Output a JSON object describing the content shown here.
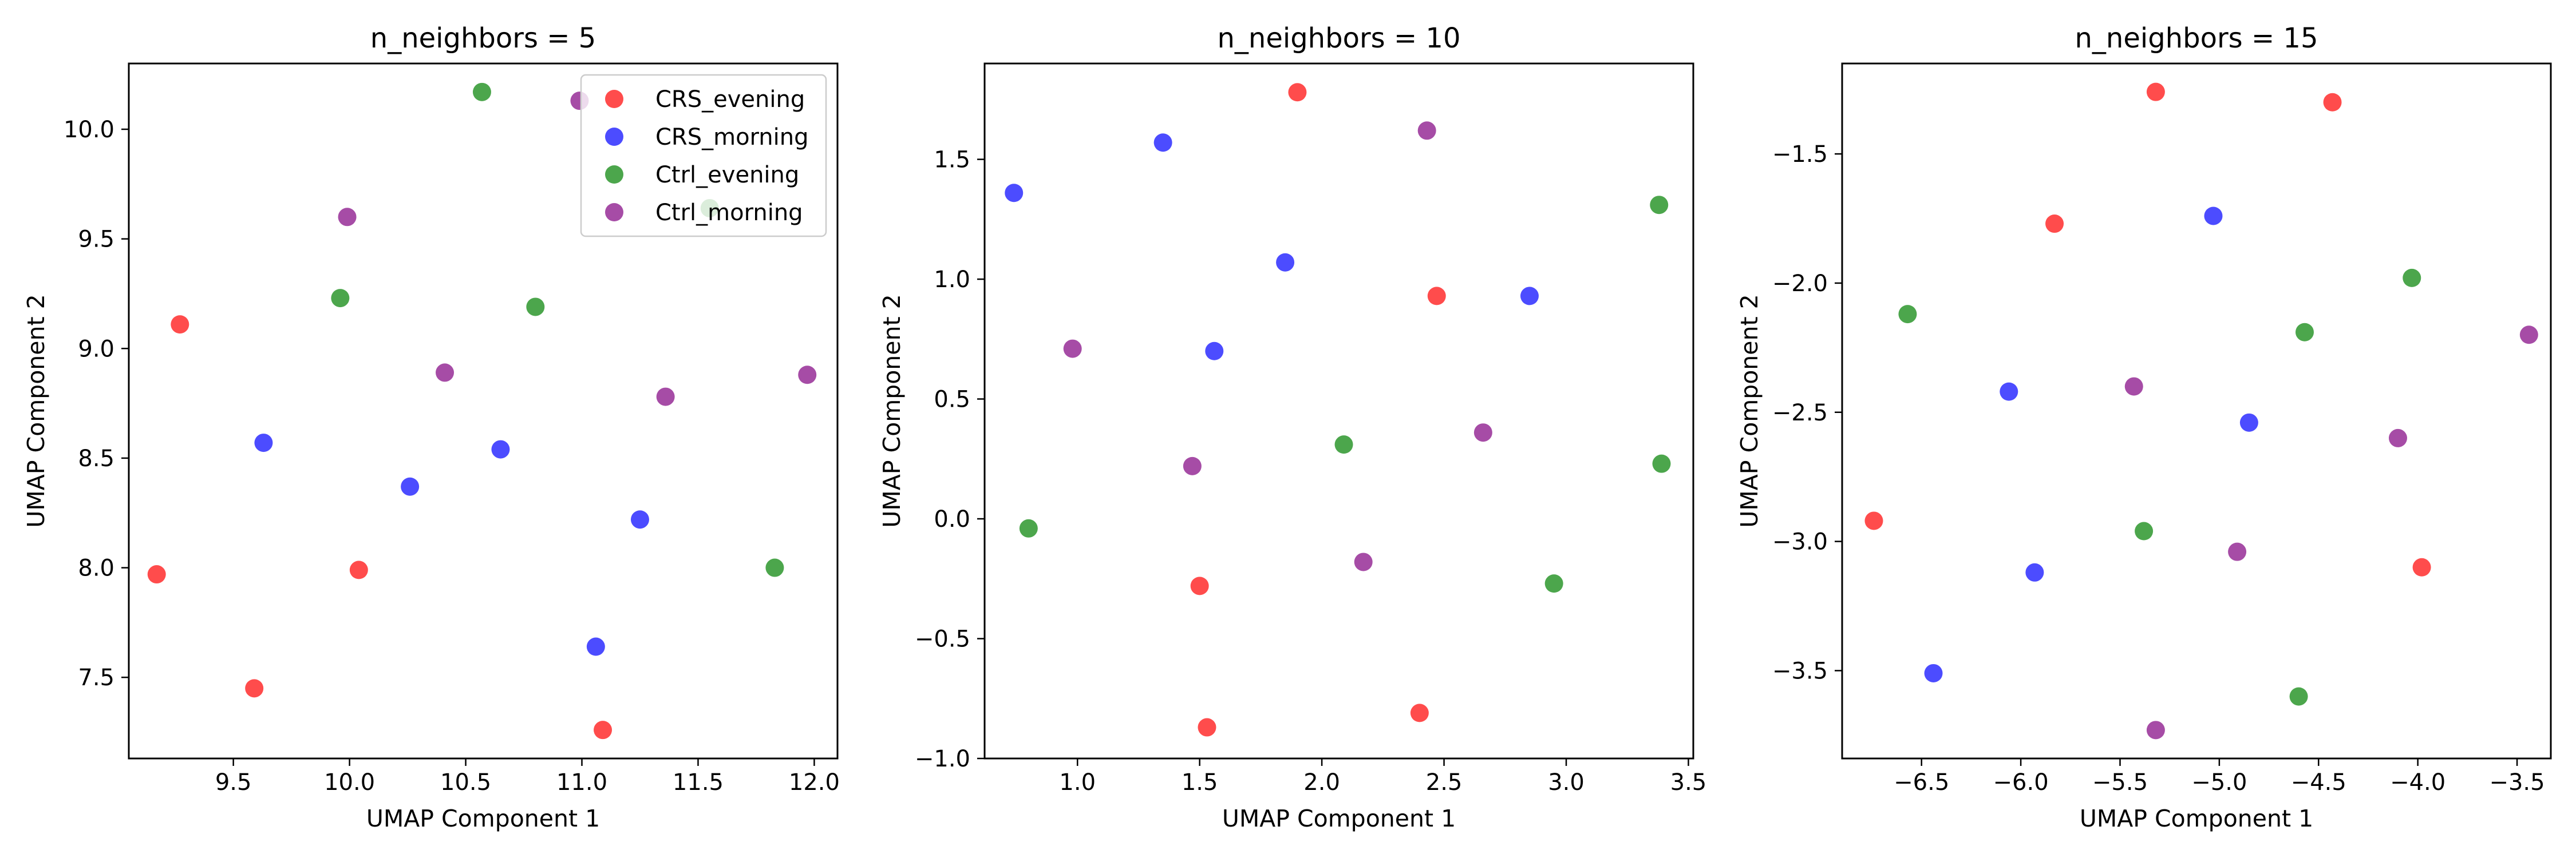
{
  "figure": {
    "background": "#ffffff"
  },
  "chart_data": [
    {
      "type": "scatter",
      "title": "n_neighbors = 5",
      "xlabel": "UMAP Component 1",
      "ylabel": "UMAP Component 2",
      "xlim": [
        9.05,
        12.1
      ],
      "ylim": [
        7.13,
        10.3
      ],
      "xticks": [
        9.5,
        10.0,
        10.5,
        11.0,
        11.5,
        12.0
      ],
      "xtick_labels": [
        "9.5",
        "10.0",
        "10.5",
        "11.0",
        "11.5",
        "12.0"
      ],
      "yticks": [
        7.5,
        8.0,
        8.5,
        9.0,
        9.5,
        10.0
      ],
      "ytick_labels": [
        "7.5",
        "8.0",
        "8.5",
        "9.0",
        "9.5",
        "10.0"
      ],
      "grid": false,
      "legend": "upper right",
      "series": [
        {
          "name": "CRS_evening",
          "color": "#ff0000",
          "points": [
            [
              9.27,
              9.11
            ],
            [
              9.17,
              7.97
            ],
            [
              9.59,
              7.45
            ],
            [
              10.04,
              7.99
            ],
            [
              11.09,
              7.26
            ]
          ]
        },
        {
          "name": "CRS_morning",
          "color": "#0000ff",
          "points": [
            [
              9.63,
              8.57
            ],
            [
              10.26,
              8.37
            ],
            [
              10.65,
              8.54
            ],
            [
              11.25,
              8.22
            ],
            [
              11.06,
              7.64
            ]
          ]
        },
        {
          "name": "Ctrl_evening",
          "color": "#008000",
          "points": [
            [
              10.57,
              10.17
            ],
            [
              9.96,
              9.23
            ],
            [
              10.8,
              9.19
            ],
            [
              11.55,
              9.64
            ],
            [
              11.83,
              8.0
            ]
          ]
        },
        {
          "name": "Ctrl_morning",
          "color": "#800080",
          "points": [
            [
              10.99,
              10.13
            ],
            [
              9.99,
              9.6
            ],
            [
              10.41,
              8.89
            ],
            [
              11.36,
              8.78
            ],
            [
              11.97,
              8.88
            ]
          ]
        }
      ]
    },
    {
      "type": "scatter",
      "title": "n_neighbors = 10",
      "xlabel": "UMAP Component 1",
      "ylabel": "UMAP Component 2",
      "xlim": [
        0.62,
        3.52
      ],
      "ylim": [
        -1.0,
        1.9
      ],
      "xticks": [
        1.0,
        1.5,
        2.0,
        2.5,
        3.0,
        3.5
      ],
      "xtick_labels": [
        "1.0",
        "1.5",
        "2.0",
        "2.5",
        "3.0",
        "3.5"
      ],
      "yticks": [
        -1.0,
        -0.5,
        0.0,
        0.5,
        1.0,
        1.5
      ],
      "ytick_labels": [
        "−1.0",
        "−0.5",
        "0.0",
        "0.5",
        "1.0",
        "1.5"
      ],
      "grid": false,
      "legend": "none",
      "series": [
        {
          "name": "CRS_evening",
          "color": "#ff0000",
          "points": [
            [
              1.9,
              1.78
            ],
            [
              2.47,
              0.93
            ],
            [
              1.5,
              -0.28
            ],
            [
              1.53,
              -0.87
            ],
            [
              2.4,
              -0.81
            ]
          ]
        },
        {
          "name": "CRS_morning",
          "color": "#0000ff",
          "points": [
            [
              0.74,
              1.36
            ],
            [
              1.35,
              1.57
            ],
            [
              1.85,
              1.07
            ],
            [
              1.56,
              0.7
            ],
            [
              2.85,
              0.93
            ]
          ]
        },
        {
          "name": "Ctrl_evening",
          "color": "#008000",
          "points": [
            [
              3.38,
              1.31
            ],
            [
              0.8,
              -0.04
            ],
            [
              2.09,
              0.31
            ],
            [
              3.39,
              0.23
            ],
            [
              2.95,
              -0.27
            ]
          ]
        },
        {
          "name": "Ctrl_morning",
          "color": "#800080",
          "points": [
            [
              2.43,
              1.62
            ],
            [
              0.98,
              0.71
            ],
            [
              1.47,
              0.22
            ],
            [
              2.66,
              0.36
            ],
            [
              2.17,
              -0.18
            ]
          ]
        }
      ]
    },
    {
      "type": "scatter",
      "title": "n_neighbors = 15",
      "xlabel": "UMAP Component 1",
      "ylabel": "UMAP Component 2",
      "xlim": [
        -6.9,
        -3.33
      ],
      "ylim": [
        -3.84,
        -1.15
      ],
      "xticks": [
        -6.5,
        -6.0,
        -5.5,
        -5.0,
        -4.5,
        -4.0,
        -3.5
      ],
      "xtick_labels": [
        "−6.5",
        "−6.0",
        "−5.5",
        "−5.0",
        "−4.5",
        "−4.0",
        "−3.5"
      ],
      "yticks": [
        -3.5,
        -3.0,
        -2.5,
        -2.0,
        -1.5
      ],
      "ytick_labels": [
        "−3.5",
        "−3.0",
        "−2.5",
        "−2.0",
        "−1.5"
      ],
      "grid": false,
      "legend": "none",
      "series": [
        {
          "name": "CRS_evening",
          "color": "#ff0000",
          "points": [
            [
              -5.32,
              -1.26
            ],
            [
              -4.43,
              -1.3
            ],
            [
              -5.83,
              -1.77
            ],
            [
              -6.74,
              -2.92
            ],
            [
              -3.98,
              -3.1
            ]
          ]
        },
        {
          "name": "CRS_morning",
          "color": "#0000ff",
          "points": [
            [
              -5.03,
              -1.74
            ],
            [
              -6.06,
              -2.42
            ],
            [
              -4.85,
              -2.54
            ],
            [
              -5.93,
              -3.12
            ],
            [
              -6.44,
              -3.51
            ]
          ]
        },
        {
          "name": "Ctrl_evening",
          "color": "#008000",
          "points": [
            [
              -6.57,
              -2.12
            ],
            [
              -4.03,
              -1.98
            ],
            [
              -4.57,
              -2.19
            ],
            [
              -5.38,
              -2.96
            ],
            [
              -4.6,
              -3.6
            ]
          ]
        },
        {
          "name": "Ctrl_morning",
          "color": "#800080",
          "points": [
            [
              -5.43,
              -2.4
            ],
            [
              -3.44,
              -2.2
            ],
            [
              -4.1,
              -2.6
            ],
            [
              -4.91,
              -3.04
            ],
            [
              -5.32,
              -3.73
            ]
          ]
        }
      ]
    }
  ]
}
